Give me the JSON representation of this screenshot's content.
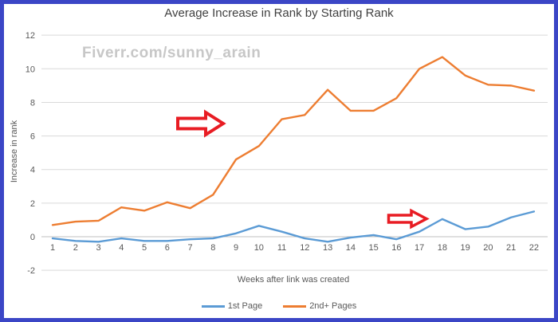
{
  "frame": {
    "border_color": "#3b46c6",
    "background": "#ffffff"
  },
  "title": "Average Increase in Rank by Starting Rank",
  "watermark": "Fiverr.com/sunny_arain",
  "annotations": {
    "arrow_color": "#e81c23",
    "arrow_fill": "#ffffff"
  },
  "chart_data": {
    "type": "line",
    "title": "Average Increase in Rank by Starting Rank",
    "xlabel": "Weeks after link was created",
    "ylabel": "Increase in rank",
    "x": [
      1,
      2,
      3,
      4,
      5,
      6,
      7,
      8,
      9,
      10,
      11,
      12,
      13,
      14,
      15,
      16,
      17,
      18,
      19,
      20,
      21,
      22
    ],
    "series": [
      {
        "name": "1st Page",
        "color": "#5b9bd5",
        "values": [
          -0.1,
          -0.25,
          -0.3,
          -0.1,
          -0.25,
          -0.25,
          -0.15,
          -0.1,
          0.2,
          0.65,
          0.3,
          -0.1,
          -0.3,
          -0.05,
          0.1,
          -0.15,
          0.3,
          1.05,
          0.45,
          0.6,
          1.15,
          1.5
        ]
      },
      {
        "name": "2nd+ Pages",
        "color": "#ed7d31",
        "values": [
          0.7,
          0.9,
          0.95,
          1.75,
          1.55,
          2.05,
          1.7,
          2.5,
          4.6,
          5.4,
          7.0,
          7.25,
          8.75,
          7.5,
          7.5,
          8.25,
          10.0,
          10.7,
          9.6,
          9.05,
          9.0,
          8.7
        ]
      }
    ],
    "ylim": [
      -2,
      12
    ],
    "yticks": [
      12,
      10,
      8,
      6,
      4,
      2,
      0,
      -2
    ],
    "grid": true,
    "legend_position": "bottom",
    "gridline_color": "#d9d9d9",
    "axis_line_color": "#bfbfbf",
    "axis_text_color": "#595959"
  }
}
